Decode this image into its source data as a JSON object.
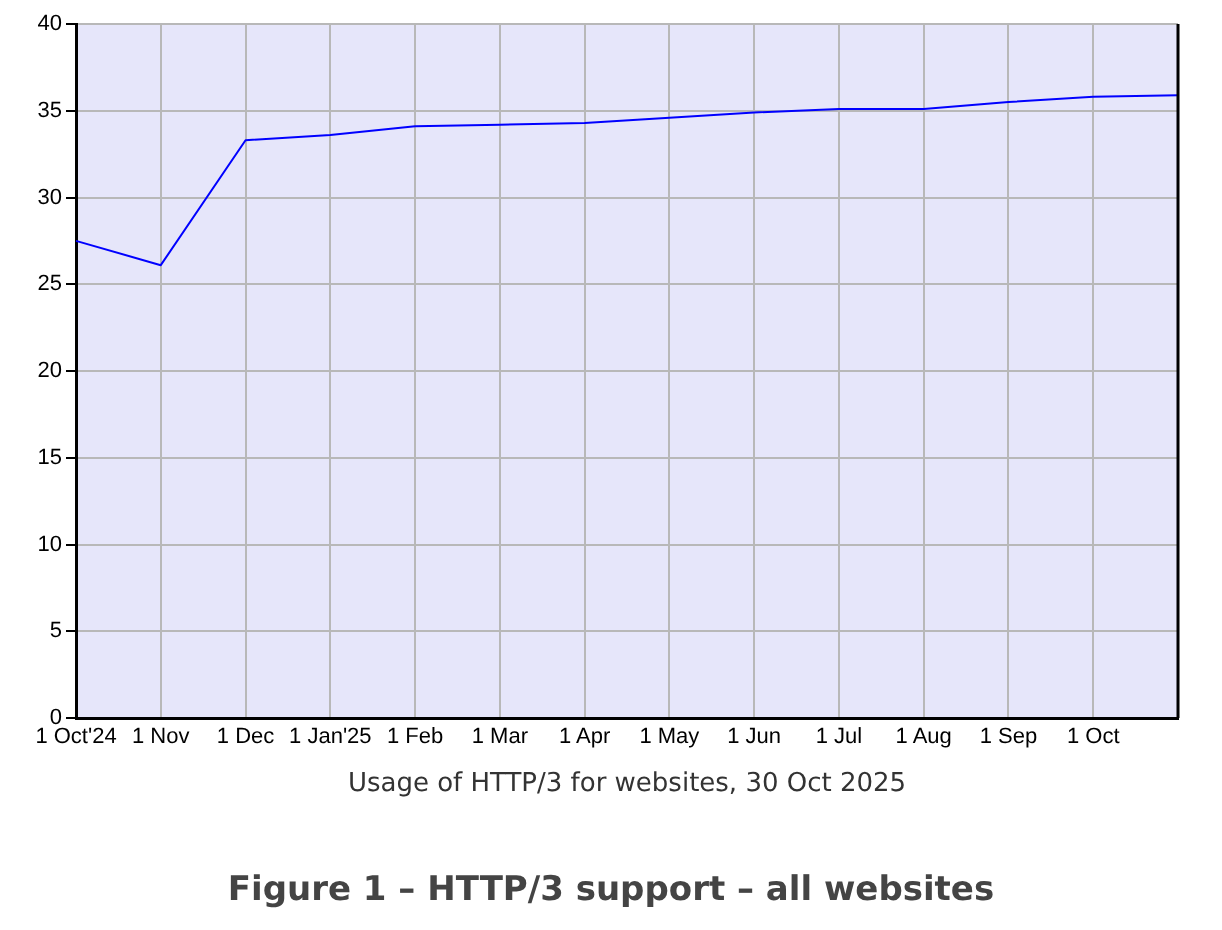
{
  "chart_data": {
    "type": "line",
    "title": "Figure 1 – HTTP/3 support – all websites",
    "xlabel": "Usage of HTTP/3 for websites, 30 Oct 2025",
    "categories": [
      "1 Oct'24",
      "1 Nov",
      "1 Dec",
      "1 Jan'25",
      "1 Feb",
      "1 Mar",
      "1 Apr",
      "1 May",
      "1 Jun",
      "1 Jul",
      "1 Aug",
      "1 Sep",
      "1 Oct",
      null
    ],
    "series": [
      {
        "color": "#0000ff",
        "values": [
          27.5,
          26.1,
          33.3,
          33.6,
          34.1,
          34.2,
          34.3,
          34.6,
          34.9,
          35.1,
          35.1,
          35.5,
          35.8,
          35.9
        ]
      }
    ],
    "ylim": [
      0,
      40
    ],
    "yticks": [
      0,
      5,
      10,
      15,
      20,
      25,
      30,
      35,
      40
    ],
    "grid": true,
    "marker": "none",
    "line_style": "solid"
  }
}
